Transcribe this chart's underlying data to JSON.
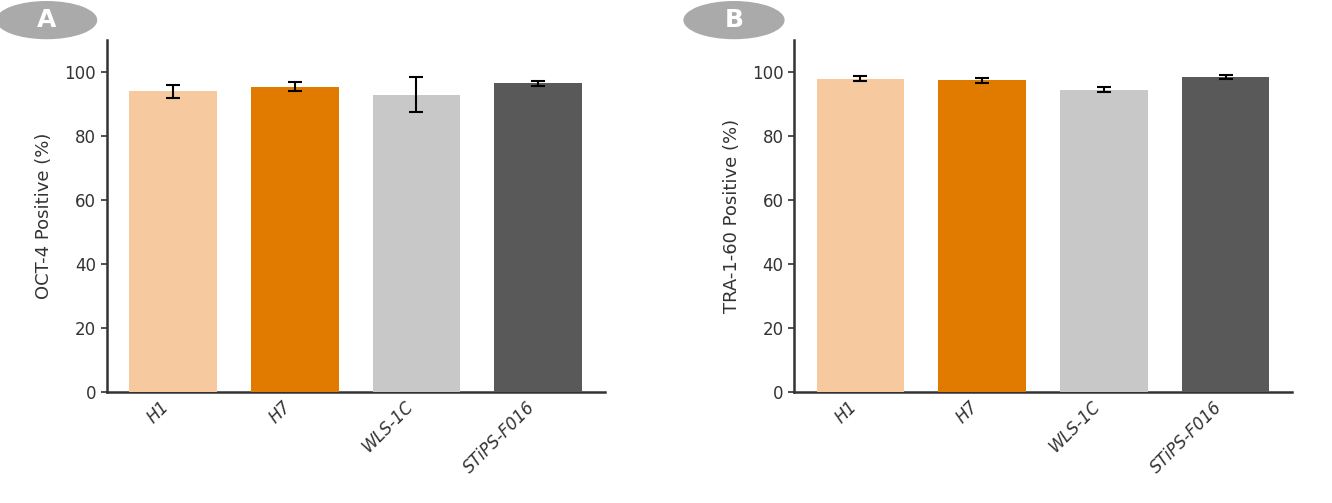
{
  "panel_A": {
    "categories": [
      "H1",
      "H7",
      "WLS-1C",
      "STiPS-F016"
    ],
    "values": [
      94.0,
      95.5,
      93.0,
      96.5
    ],
    "errors": [
      2.0,
      1.5,
      5.5,
      0.7
    ],
    "bar_colors": [
      "#F7C99E",
      "#E07B00",
      "#C8C8C8",
      "#595959"
    ],
    "ylabel": "OCT-4 Positive (%)",
    "ylim": [
      0,
      110
    ],
    "yticks": [
      0,
      20,
      40,
      60,
      80,
      100
    ],
    "panel_label": "A"
  },
  "panel_B": {
    "categories": [
      "H1",
      "H7",
      "WLS-1C",
      "STiPS-F016"
    ],
    "values": [
      98.0,
      97.5,
      94.5,
      98.5
    ],
    "errors": [
      0.7,
      0.8,
      0.8,
      0.5
    ],
    "bar_colors": [
      "#F7C99E",
      "#E07B00",
      "#C8C8C8",
      "#595959"
    ],
    "ylabel": "TRA-1-60 Positive (%)",
    "ylim": [
      0,
      110
    ],
    "yticks": [
      0,
      20,
      40,
      60,
      80,
      100
    ],
    "panel_label": "B"
  },
  "background_color": "#FFFFFF",
  "bar_width": 0.72,
  "error_capsize": 5,
  "error_linewidth": 1.5,
  "axis_linewidth": 1.8,
  "tick_fontsize": 12,
  "ylabel_fontsize": 13,
  "panel_label_fontsize": 18,
  "xtick_rotation": 45,
  "panel_label_bg_color": "#AAAAAA",
  "panel_label_text_color": "#FFFFFF"
}
